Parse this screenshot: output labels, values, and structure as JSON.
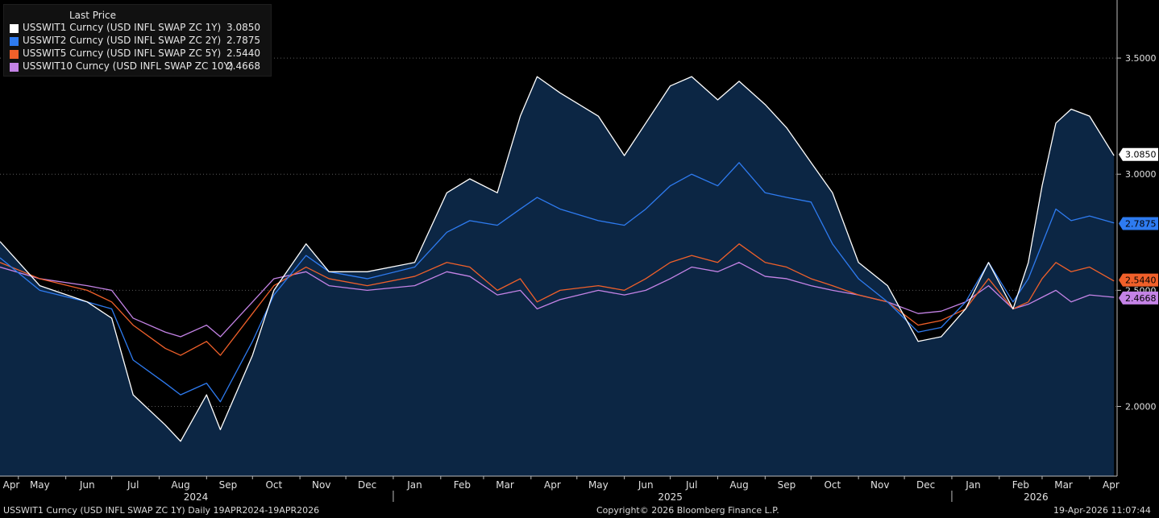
{
  "chart_data": {
    "type": "line",
    "legend_title": "Last Price",
    "legend_position": "top-left",
    "grid": true,
    "ylim": [
      1.7,
      3.75
    ],
    "y_ticks": [
      "2.0000",
      "2.5000",
      "3.0000",
      "3.5000"
    ],
    "month_labels": [
      "Apr",
      "May",
      "Jun",
      "Jul",
      "Aug",
      "Sep",
      "Oct",
      "Nov",
      "Dec",
      "Jan",
      "Feb",
      "Mar",
      "Apr",
      "May",
      "Jun",
      "Jul",
      "Aug",
      "Sep",
      "Oct",
      "Nov",
      "Dec",
      "Jan",
      "Feb",
      "Mar",
      "Apr"
    ],
    "year_labels": [
      "2024",
      "2025",
      "2026"
    ],
    "x": [
      "2024-04-19",
      "2024-05-15",
      "2024-06-15",
      "2024-07-01",
      "2024-07-15",
      "2024-08-05",
      "2024-08-15",
      "2024-09-01",
      "2024-09-10",
      "2024-10-01",
      "2024-10-15",
      "2024-11-05",
      "2024-11-20",
      "2024-12-15",
      "2025-01-15",
      "2025-02-05",
      "2025-02-20",
      "2025-03-10",
      "2025-03-25",
      "2025-04-05",
      "2025-04-20",
      "2025-05-15",
      "2025-06-01",
      "2025-06-15",
      "2025-07-01",
      "2025-07-15",
      "2025-08-01",
      "2025-08-15",
      "2025-09-01",
      "2025-09-15",
      "2025-10-01",
      "2025-10-15",
      "2025-11-01",
      "2025-11-20",
      "2025-12-10",
      "2025-12-25",
      "2026-01-10",
      "2026-01-25",
      "2026-02-10",
      "2026-02-20",
      "2026-03-01",
      "2026-03-10",
      "2026-03-20",
      "2026-04-01",
      "2026-04-17"
    ],
    "series": [
      {
        "name": "USSWIT1 Curncy (USD INFL SWAP ZC 1Y)",
        "last": "3.0850",
        "color": "#ffffff",
        "values": [
          2.71,
          2.52,
          2.45,
          2.38,
          2.05,
          1.92,
          1.85,
          2.05,
          1.9,
          2.22,
          2.5,
          2.7,
          2.58,
          2.58,
          2.62,
          2.92,
          2.98,
          2.92,
          3.25,
          3.42,
          3.35,
          3.25,
          3.08,
          3.22,
          3.38,
          3.42,
          3.32,
          3.4,
          3.3,
          3.2,
          3.05,
          2.92,
          2.62,
          2.52,
          2.28,
          2.3,
          2.42,
          2.62,
          2.42,
          2.62,
          2.95,
          3.22,
          3.28,
          3.25,
          3.08
        ]
      },
      {
        "name": "USSWIT2 Curncy (USD INFL SWAP ZC 2Y)",
        "last": "2.7875",
        "color": "#2e7bf0",
        "values": [
          2.64,
          2.5,
          2.45,
          2.42,
          2.2,
          2.1,
          2.05,
          2.1,
          2.02,
          2.28,
          2.48,
          2.65,
          2.58,
          2.55,
          2.6,
          2.75,
          2.8,
          2.78,
          2.85,
          2.9,
          2.85,
          2.8,
          2.78,
          2.85,
          2.95,
          3.0,
          2.95,
          3.05,
          2.92,
          2.9,
          2.88,
          2.7,
          2.55,
          2.45,
          2.32,
          2.34,
          2.45,
          2.62,
          2.45,
          2.55,
          2.7,
          2.85,
          2.8,
          2.82,
          2.79
        ]
      },
      {
        "name": "USSWIT5 Curncy (USD INFL SWAP ZC 5Y)",
        "last": "2.5440",
        "color": "#f0602a",
        "values": [
          2.62,
          2.55,
          2.5,
          2.45,
          2.35,
          2.25,
          2.22,
          2.28,
          2.22,
          2.4,
          2.52,
          2.6,
          2.55,
          2.52,
          2.56,
          2.62,
          2.6,
          2.5,
          2.55,
          2.45,
          2.5,
          2.52,
          2.5,
          2.55,
          2.62,
          2.65,
          2.62,
          2.7,
          2.62,
          2.6,
          2.55,
          2.52,
          2.48,
          2.45,
          2.35,
          2.37,
          2.42,
          2.55,
          2.42,
          2.45,
          2.55,
          2.62,
          2.58,
          2.6,
          2.54
        ]
      },
      {
        "name": "USSWIT10 Curncy (USD INFL SWAP ZC 10Y)",
        "last": "2.4668",
        "color": "#c483e6",
        "values": [
          2.6,
          2.55,
          2.52,
          2.5,
          2.38,
          2.32,
          2.3,
          2.35,
          2.3,
          2.45,
          2.55,
          2.58,
          2.52,
          2.5,
          2.52,
          2.58,
          2.56,
          2.48,
          2.5,
          2.42,
          2.46,
          2.5,
          2.48,
          2.5,
          2.55,
          2.6,
          2.58,
          2.62,
          2.56,
          2.55,
          2.52,
          2.5,
          2.48,
          2.45,
          2.4,
          2.41,
          2.45,
          2.52,
          2.42,
          2.44,
          2.47,
          2.5,
          2.45,
          2.48,
          2.47
        ]
      }
    ]
  },
  "footer": {
    "left": "USSWIT1 Curncy (USD INFL SWAP ZC 1Y) Daily 19APR2024-19APR2026",
    "center": "Copyright© 2026 Bloomberg Finance L.P.",
    "right": "19-Apr-2026 11:07:44"
  }
}
